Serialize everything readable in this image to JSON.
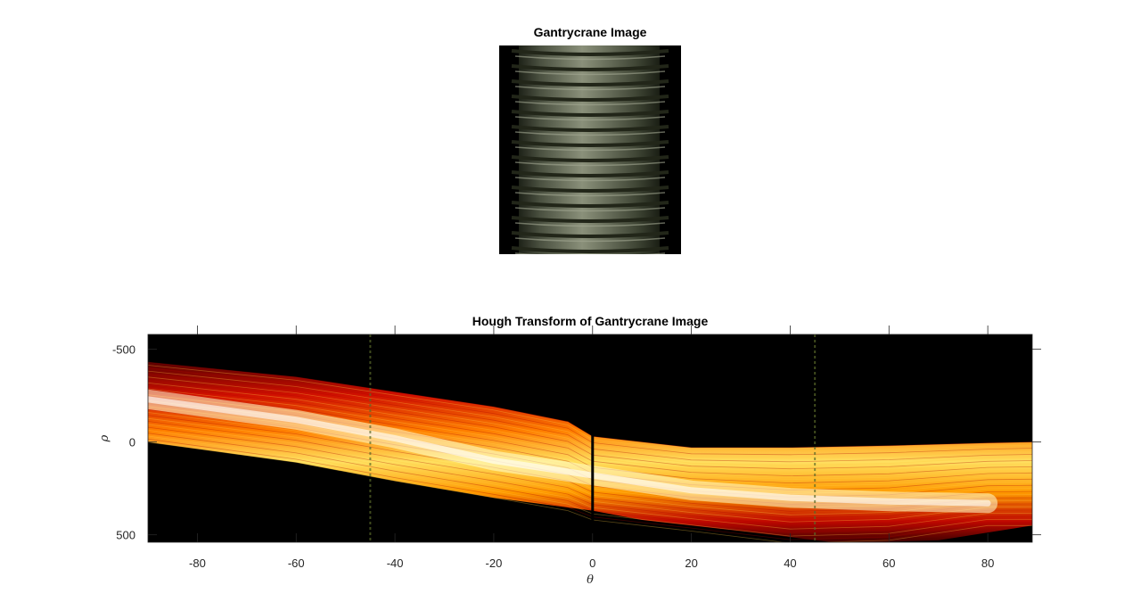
{
  "figure": {
    "top_title": "Gantrycrane Image",
    "bottom_title": "Hough Transform of Gantrycrane Image"
  },
  "chart_data": [
    {
      "type": "image",
      "title": "Gantrycrane Image",
      "content": "threaded bolt photograph (grayscale-green tones) on black background"
    },
    {
      "type": "heatmap",
      "title": "Hough Transform of Gantrycrane Image",
      "xlabel": "θ",
      "ylabel": "ρ",
      "xlim": [
        -90,
        89
      ],
      "ylim": [
        -580,
        540
      ],
      "y_reversed": true,
      "x_ticks": [
        -80,
        -60,
        -40,
        -20,
        0,
        20,
        40,
        60,
        80
      ],
      "y_ticks": [
        -500,
        0,
        500
      ],
      "colormap": "hot",
      "colormap_colors": [
        "#000000",
        "#8b0000",
        "#ff2a00",
        "#ff9a00",
        "#ffff66",
        "#ffffff"
      ],
      "band_upper_edge": [
        [
          -90,
          -430
        ],
        [
          -60,
          -350
        ],
        [
          -40,
          -270
        ],
        [
          -20,
          -190
        ],
        [
          -5,
          -110
        ],
        [
          0,
          -30
        ],
        [
          20,
          30
        ],
        [
          40,
          30
        ],
        [
          60,
          20
        ],
        [
          80,
          5
        ],
        [
          89,
          0
        ]
      ],
      "band_lower_edge": [
        [
          -90,
          0
        ],
        [
          -60,
          110
        ],
        [
          -40,
          210
        ],
        [
          -20,
          300
        ],
        [
          0,
          370
        ],
        [
          10,
          420
        ],
        [
          30,
          480
        ],
        [
          50,
          545
        ],
        [
          70,
          530
        ],
        [
          89,
          450
        ]
      ],
      "bright_ridge": [
        [
          -90,
          -230
        ],
        [
          -60,
          -120
        ],
        [
          -40,
          -20
        ],
        [
          -20,
          100
        ],
        [
          0,
          180
        ],
        [
          20,
          260
        ],
        [
          40,
          300
        ],
        [
          60,
          320
        ],
        [
          80,
          330
        ]
      ],
      "vertical_gap_at_theta": 0,
      "vertical_streaks_at_theta": [
        -45,
        45
      ]
    }
  ]
}
